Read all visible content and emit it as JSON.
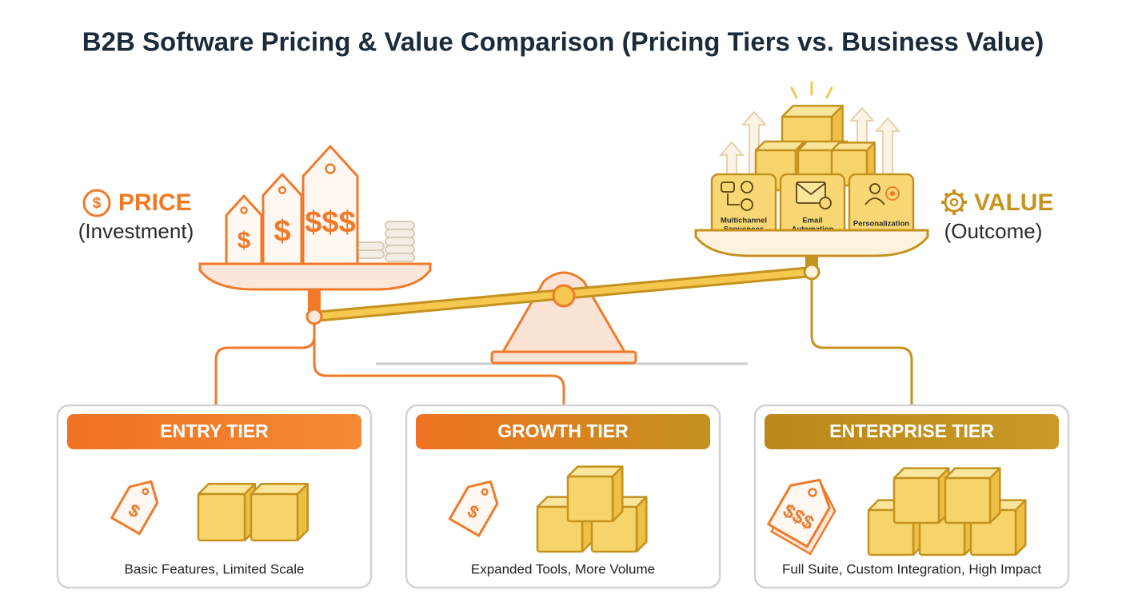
{
  "title": "B2B Software Pricing & Value Comparison (Pricing Tiers vs. Business Value)",
  "price": {
    "icon": "$",
    "label": "PRICE",
    "sub": "(Investment)",
    "tags": [
      "$",
      "$",
      "$$$"
    ]
  },
  "value": {
    "label": "VALUE",
    "sub": "(Outcome)",
    "features": [
      [
        "Multichannel",
        "Sequences"
      ],
      [
        "Email",
        "Automation"
      ],
      [
        "Personalization"
      ]
    ]
  },
  "tiers": [
    {
      "name": "ENTRY TIER",
      "tag": "$",
      "description": "Basic Features, Limited Scale"
    },
    {
      "name": "GROWTH TIER",
      "tag": "$",
      "description": "Expanded Tools, More Volume"
    },
    {
      "name": "ENTERPRISE TIER",
      "tag": "$$$",
      "description": "Full Suite, Custom Integration, High Impact"
    }
  ]
}
